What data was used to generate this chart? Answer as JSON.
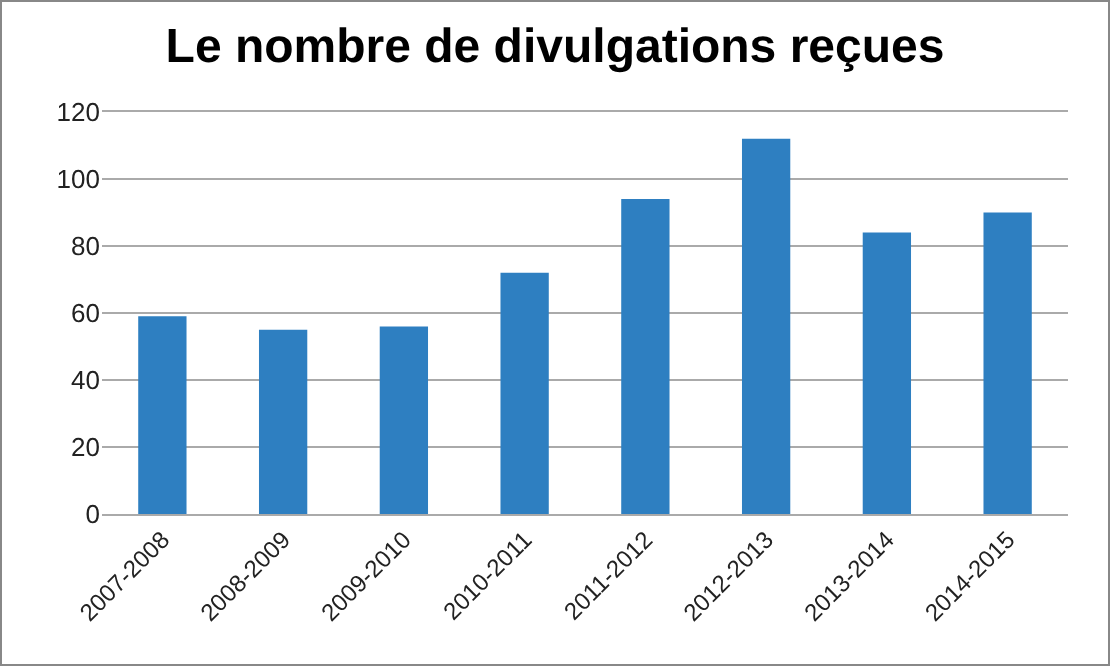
{
  "chart_data": {
    "type": "bar",
    "title": "Le nombre de divulgations reçues",
    "categories": [
      "2007-2008",
      "2008-2009",
      "2009-2010",
      "2010-2011",
      "2011-2012",
      "2012-2013",
      "2013-2014",
      "2014-2015"
    ],
    "values": [
      59,
      55,
      56,
      72,
      94,
      112,
      84,
      90
    ],
    "color": "#2e7fc1",
    "ylim": [
      0,
      120
    ],
    "yticks": [
      0,
      20,
      40,
      60,
      80,
      100,
      120
    ],
    "grid": "y"
  }
}
